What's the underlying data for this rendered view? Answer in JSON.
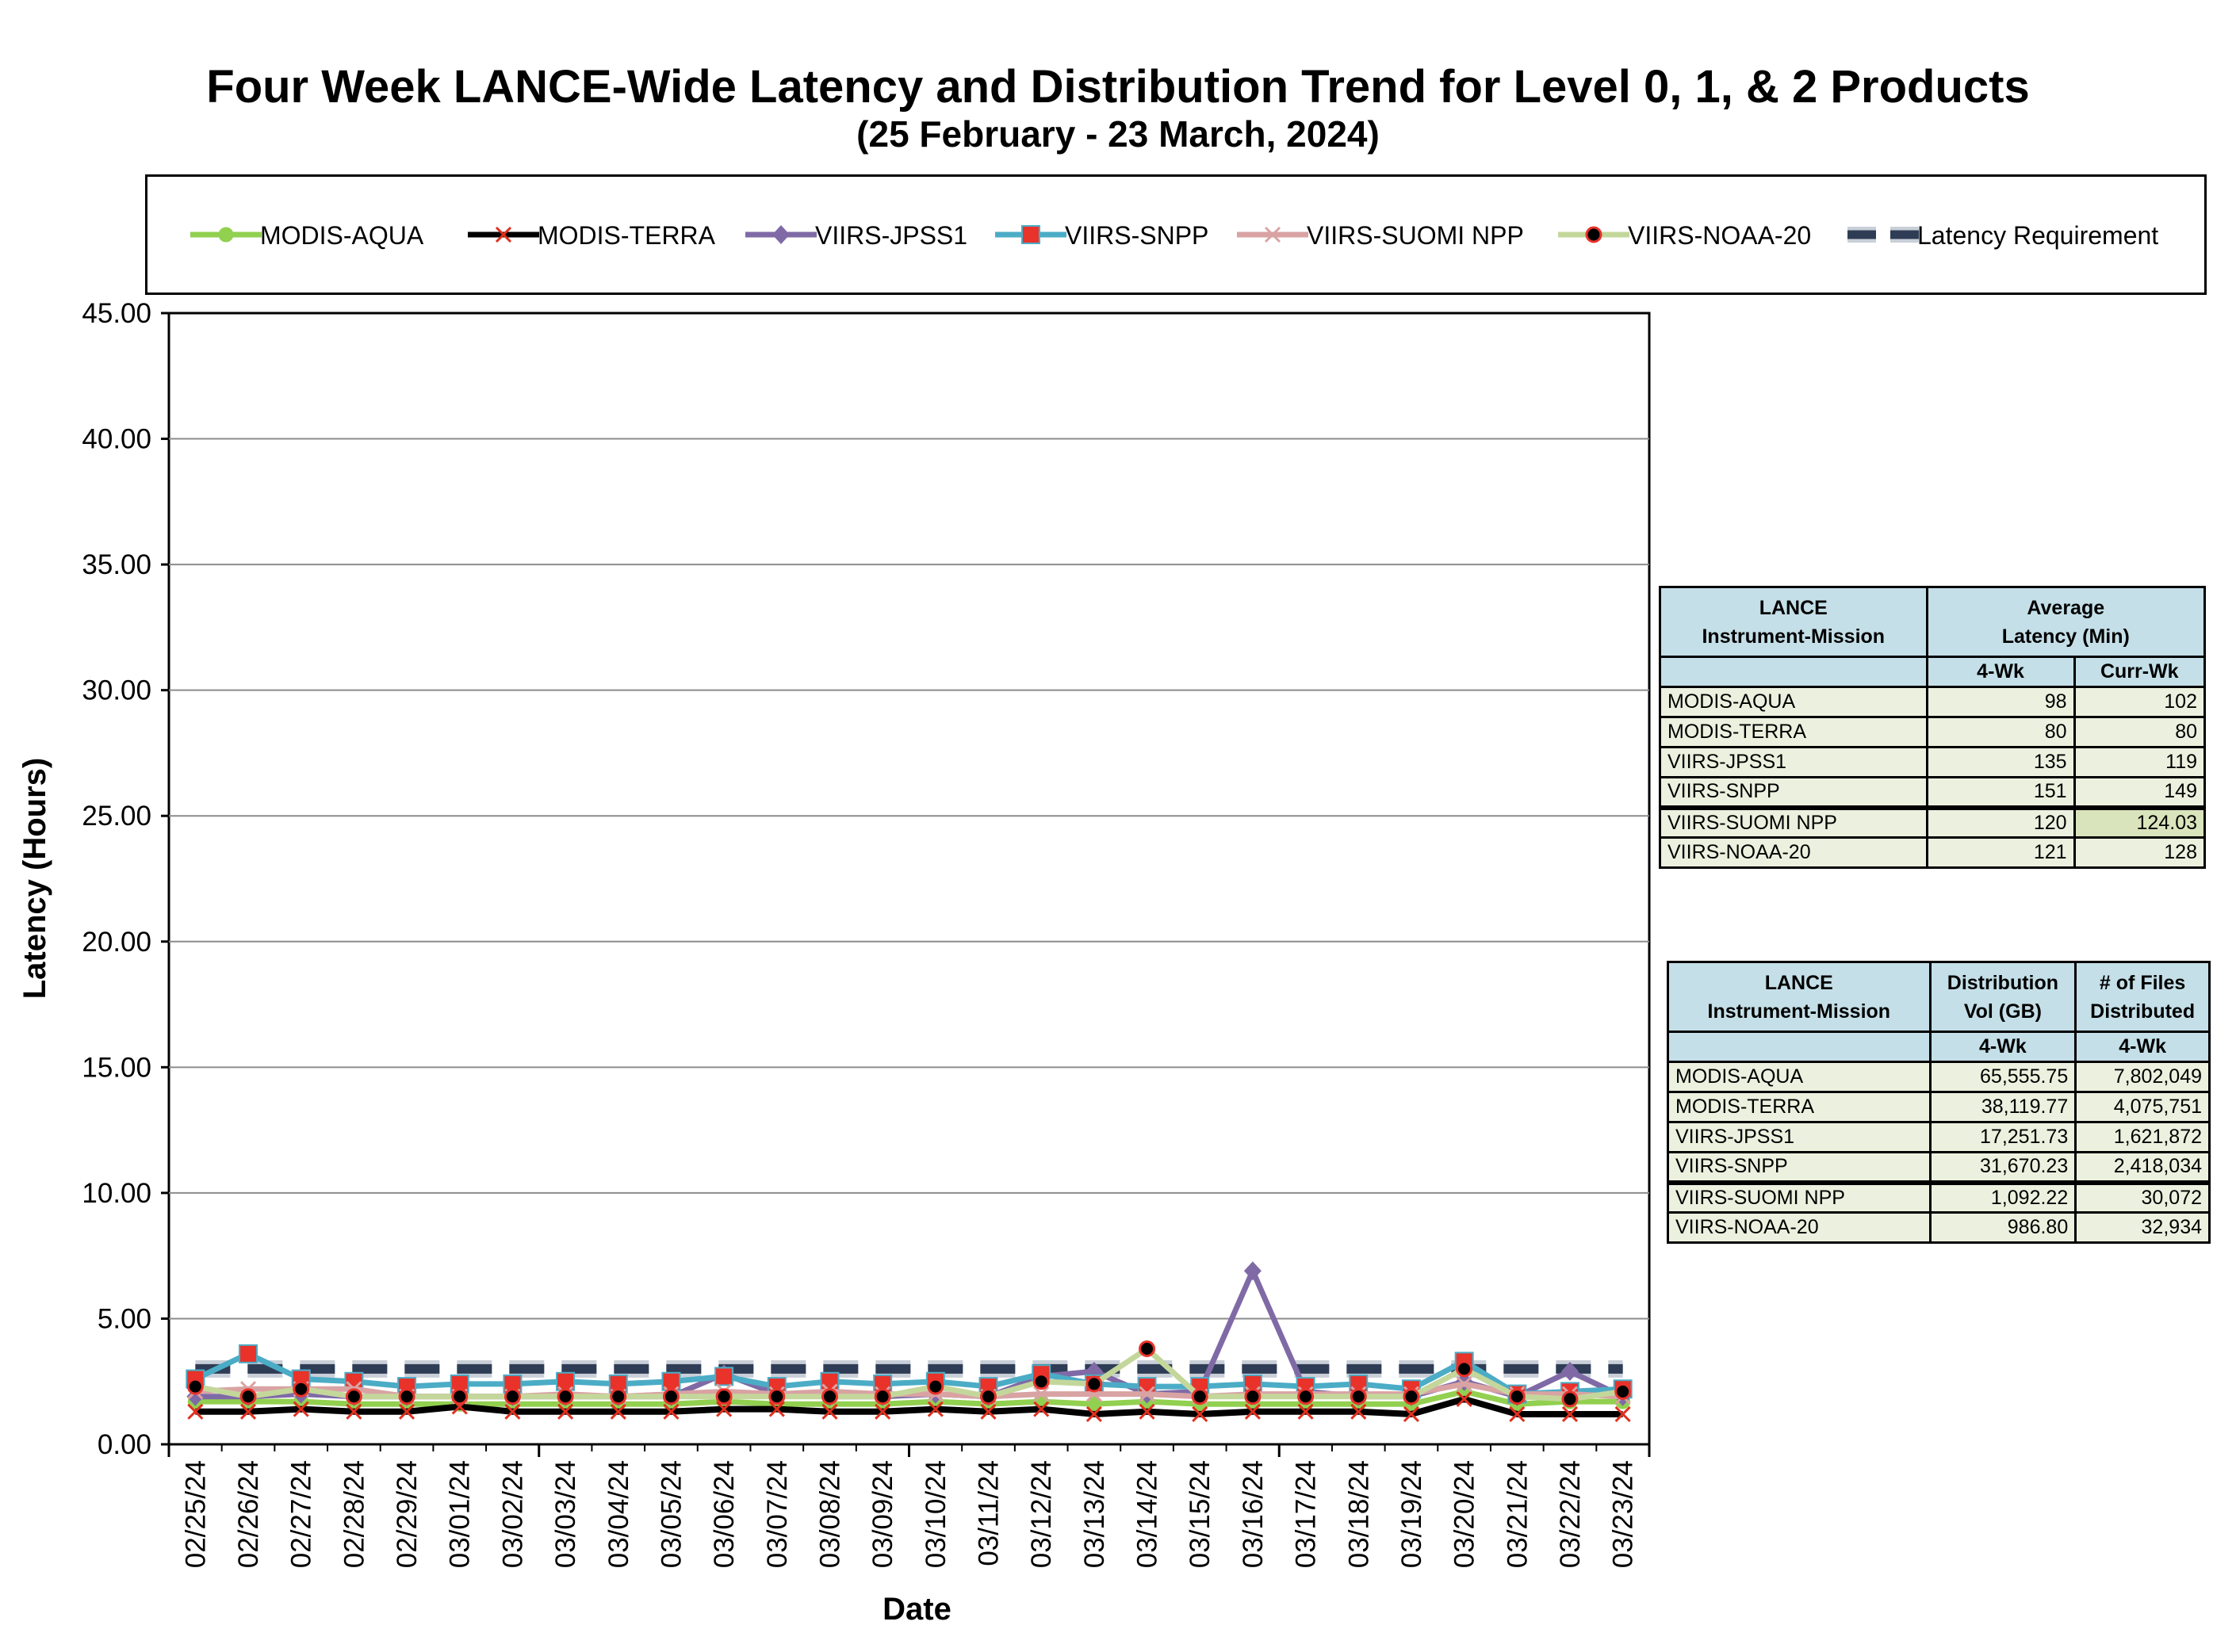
{
  "title": "Four Week LANCE-Wide Latency and Distribution Trend for Level 0, 1, & 2 Products",
  "subtitle": "(25  February    -  23  March,  2024)",
  "chart_data": {
    "type": "line",
    "xlabel": "Date",
    "ylabel": "Latency (Hours)",
    "ylim": [
      0,
      45
    ],
    "yticks": [
      "0.00",
      "5.00",
      "10.00",
      "15.00",
      "20.00",
      "25.00",
      "30.00",
      "35.00",
      "40.00",
      "45.00"
    ],
    "grid": true,
    "legend_position": "top",
    "categories": [
      "02/25/24",
      "02/26/24",
      "02/27/24",
      "02/28/24",
      "02/29/24",
      "03/01/24",
      "03/02/24",
      "03/03/24",
      "03/04/24",
      "03/05/24",
      "03/06/24",
      "03/07/24",
      "03/08/24",
      "03/09/24",
      "03/10/24",
      "03/11/24",
      "03/12/24",
      "03/13/24",
      "03/14/24",
      "03/15/24",
      "03/16/24",
      "03/17/24",
      "03/18/24",
      "03/19/24",
      "03/20/24",
      "03/21/24",
      "03/22/24",
      "03/23/24"
    ],
    "series": [
      {
        "name": "MODIS-AQUA",
        "color": "#92d050",
        "marker": "circle",
        "values": [
          1.7,
          1.7,
          1.7,
          1.6,
          1.6,
          1.6,
          1.6,
          1.6,
          1.6,
          1.6,
          1.7,
          1.6,
          1.6,
          1.6,
          1.7,
          1.6,
          1.7,
          1.6,
          1.7,
          1.6,
          1.6,
          1.6,
          1.6,
          1.6,
          2.1,
          1.6,
          1.7,
          1.7
        ]
      },
      {
        "name": "MODIS-TERRA",
        "color": "#000000",
        "marker": "x",
        "values": [
          1.3,
          1.3,
          1.4,
          1.3,
          1.3,
          1.5,
          1.3,
          1.3,
          1.3,
          1.3,
          1.4,
          1.4,
          1.3,
          1.3,
          1.4,
          1.3,
          1.4,
          1.2,
          1.3,
          1.2,
          1.3,
          1.3,
          1.3,
          1.2,
          1.8,
          1.2,
          1.2,
          1.2
        ]
      },
      {
        "name": "VIIRS-JPSS1",
        "color": "#7f6aa6",
        "marker": "diamond",
        "values": [
          1.9,
          1.9,
          2.0,
          1.9,
          1.9,
          1.9,
          1.9,
          1.9,
          1.9,
          1.9,
          2.8,
          2.0,
          1.9,
          1.9,
          2.0,
          1.9,
          2.7,
          2.9,
          2.0,
          2.1,
          6.9,
          2.1,
          1.9,
          1.9,
          2.5,
          1.9,
          2.9,
          1.9
        ]
      },
      {
        "name": "VIIRS-SNPP",
        "color": "#4bacc6",
        "marker": "square",
        "values": [
          2.6,
          3.6,
          2.6,
          2.5,
          2.3,
          2.4,
          2.4,
          2.5,
          2.4,
          2.5,
          2.7,
          2.3,
          2.5,
          2.4,
          2.5,
          2.3,
          2.8,
          2.4,
          2.3,
          2.3,
          2.4,
          2.3,
          2.4,
          2.2,
          3.3,
          2.0,
          2.1,
          2.2
        ]
      },
      {
        "name": "VIIRS-SUOMI NPP",
        "color": "#d9a3a3",
        "marker": "x",
        "values": [
          2.1,
          2.2,
          2.2,
          2.2,
          1.9,
          1.9,
          1.9,
          2.0,
          1.9,
          2.0,
          2.1,
          2.0,
          2.1,
          2.0,
          2.0,
          1.9,
          2.0,
          2.0,
          2.0,
          1.9,
          2.0,
          2.0,
          2.0,
          2.0,
          2.4,
          2.0,
          2.0,
          1.9
        ]
      },
      {
        "name": "VIIRS-NOAA-20",
        "color": "#c4d79b",
        "marker": "dot",
        "values": [
          2.3,
          1.9,
          2.2,
          1.9,
          1.9,
          1.9,
          1.9,
          1.9,
          1.9,
          1.9,
          1.9,
          1.9,
          1.9,
          1.9,
          2.3,
          1.9,
          2.5,
          2.4,
          3.8,
          1.9,
          1.9,
          1.9,
          1.9,
          1.9,
          3.0,
          1.9,
          1.8,
          2.1
        ]
      },
      {
        "name": "Latency Requirement",
        "color": "#2e3d55",
        "marker": "none",
        "values": [
          3,
          3,
          3,
          3,
          3,
          3,
          3,
          3,
          3,
          3,
          3,
          3,
          3,
          3,
          3,
          3,
          3,
          3,
          3,
          3,
          3,
          3,
          3,
          3,
          3,
          3,
          3,
          3
        ]
      }
    ]
  },
  "latency_table": {
    "col1_header": [
      "LANCE",
      "Instrument-Mission"
    ],
    "col2_header": [
      "Average",
      "Latency (Min)"
    ],
    "sub_headers": [
      "4-Wk",
      "Curr-Wk"
    ],
    "rows": [
      {
        "name": "MODIS-AQUA",
        "four_wk": "98",
        "curr_wk": "102"
      },
      {
        "name": "MODIS-TERRA",
        "four_wk": "80",
        "curr_wk": "80"
      },
      {
        "name": "VIIRS-JPSS1",
        "four_wk": "135",
        "curr_wk": "119"
      },
      {
        "name": "VIIRS-SNPP",
        "four_wk": "151",
        "curr_wk": "149"
      },
      {
        "name": "VIIRS-SUOMI NPP",
        "four_wk": "120",
        "curr_wk": "124.03"
      },
      {
        "name": "VIIRS-NOAA-20",
        "four_wk": "121",
        "curr_wk": "128"
      }
    ]
  },
  "distribution_table": {
    "col1_header": [
      "LANCE",
      "Instrument-Mission"
    ],
    "col2_header": [
      "Distribution",
      "Vol (GB)"
    ],
    "col3_header": [
      "# of Files",
      "Distributed"
    ],
    "sub_headers": [
      "4-Wk",
      "4-Wk"
    ],
    "rows": [
      {
        "name": "MODIS-AQUA",
        "vol": "65,555.75",
        "files": "7,802,049"
      },
      {
        "name": "MODIS-TERRA",
        "vol": "38,119.77",
        "files": "4,075,751"
      },
      {
        "name": "VIIRS-JPSS1",
        "vol": "17,251.73",
        "files": "1,621,872"
      },
      {
        "name": "VIIRS-SNPP",
        "vol": "31,670.23",
        "files": "2,418,034"
      },
      {
        "name": "VIIRS-SUOMI NPP",
        "vol": "1,092.22",
        "files": "30,072"
      },
      {
        "name": "VIIRS-NOAA-20",
        "vol": "986.80",
        "files": "32,934"
      }
    ]
  }
}
